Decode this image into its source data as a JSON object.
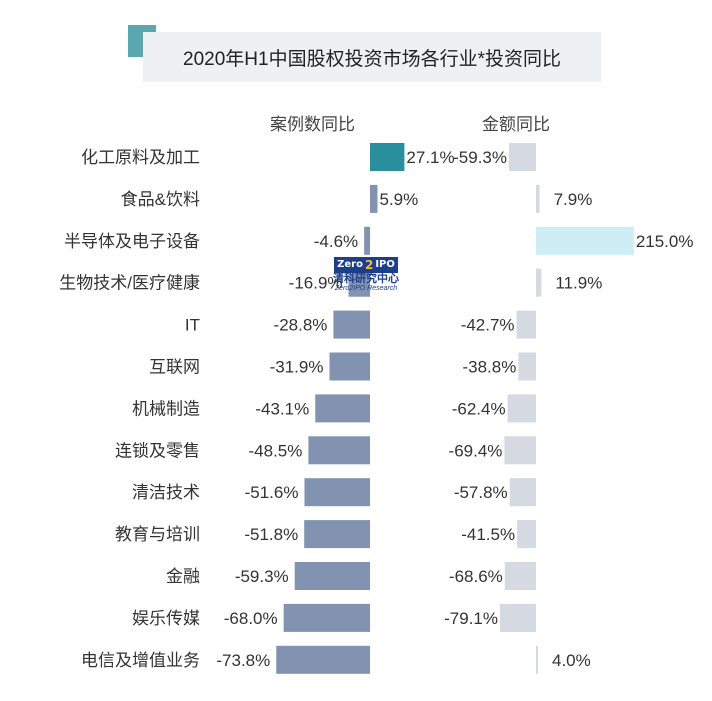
{
  "title": "2020年H1中国股权投资市场各行业*投资同比",
  "watermark": {
    "logo_left": "Zero",
    "logo_mid": "2",
    "logo_right": "IPO",
    "name_cn": "清科研究中心",
    "name_en": "Zero2IPO Research"
  },
  "colors": {
    "left_bar": "#8193b0",
    "left_highlight": "#2a8f9c",
    "right_bar": "#d4d9e2",
    "right_highlight": "#cdeef4",
    "title_accent": "#5ba7b0"
  },
  "chart_data": {
    "type": "bar",
    "orientation": "horizontal",
    "categories": [
      "化工原料及加工",
      "食品&饮料",
      "半导体及电子设备",
      "生物技术/医疗健康",
      "IT",
      "互联网",
      "机械制造",
      "连锁及零售",
      "清洁技术",
      "教育与培训",
      "金融",
      "娱乐传媒",
      "电信及增值业务"
    ],
    "series": [
      {
        "name": "案例数同比",
        "values": [
          27.1,
          5.9,
          -4.6,
          -16.9,
          -28.8,
          -31.9,
          -43.1,
          -48.5,
          -51.6,
          -51.8,
          -59.3,
          -68.0,
          -73.8
        ]
      },
      {
        "name": "金额同比",
        "values": [
          -59.3,
          7.9,
          215.0,
          11.9,
          -42.7,
          -38.8,
          -62.4,
          -69.4,
          -57.8,
          -41.5,
          -68.6,
          -79.1,
          4.0
        ]
      }
    ],
    "value_labels": [
      [
        "27.1%",
        "5.9%",
        "-4.6%",
        "-16.9%",
        "-28.8%",
        "-31.9%",
        "-43.1%",
        "-48.5%",
        "-51.6%",
        "-51.8%",
        "-59.3%",
        "-68.0%",
        "-73.8%"
      ],
      [
        "-59.3%",
        "7.9%",
        "215.0%",
        "11.9%",
        "-42.7%",
        "-38.8%",
        "-62.4%",
        "-69.4%",
        "-57.8%",
        "-41.5%",
        "-68.6%",
        "-79.1%",
        "4.0%"
      ]
    ],
    "unit": "%",
    "highlight_categories": {
      "案例数同比": "化工原料及加工",
      "金额同比": "半导体及电子设备"
    }
  }
}
